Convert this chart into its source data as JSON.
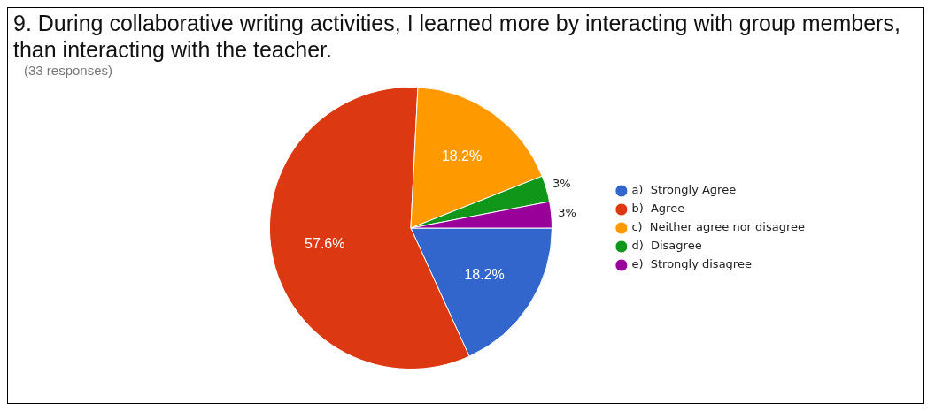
{
  "chart_data": {
    "type": "pie",
    "title": "9. During collaborative writing activities, I learned more by interacting with group members, than interacting with the teacher.",
    "subtitle": "(33 responses)",
    "categories": [
      "a)  Strongly Agree",
      "b)  Agree",
      "c)  Neither agree nor disagree",
      "d)  Disagree",
      "e)  Strongly disagree"
    ],
    "values": [
      18.2,
      57.6,
      18.2,
      3,
      3
    ],
    "value_labels": [
      "18.2%",
      "57.6%",
      "18.2%",
      "3%",
      "3%"
    ],
    "colors": [
      "#3366cc",
      "#dc3912",
      "#ff9900",
      "#109618",
      "#990099"
    ],
    "legend": "right"
  }
}
